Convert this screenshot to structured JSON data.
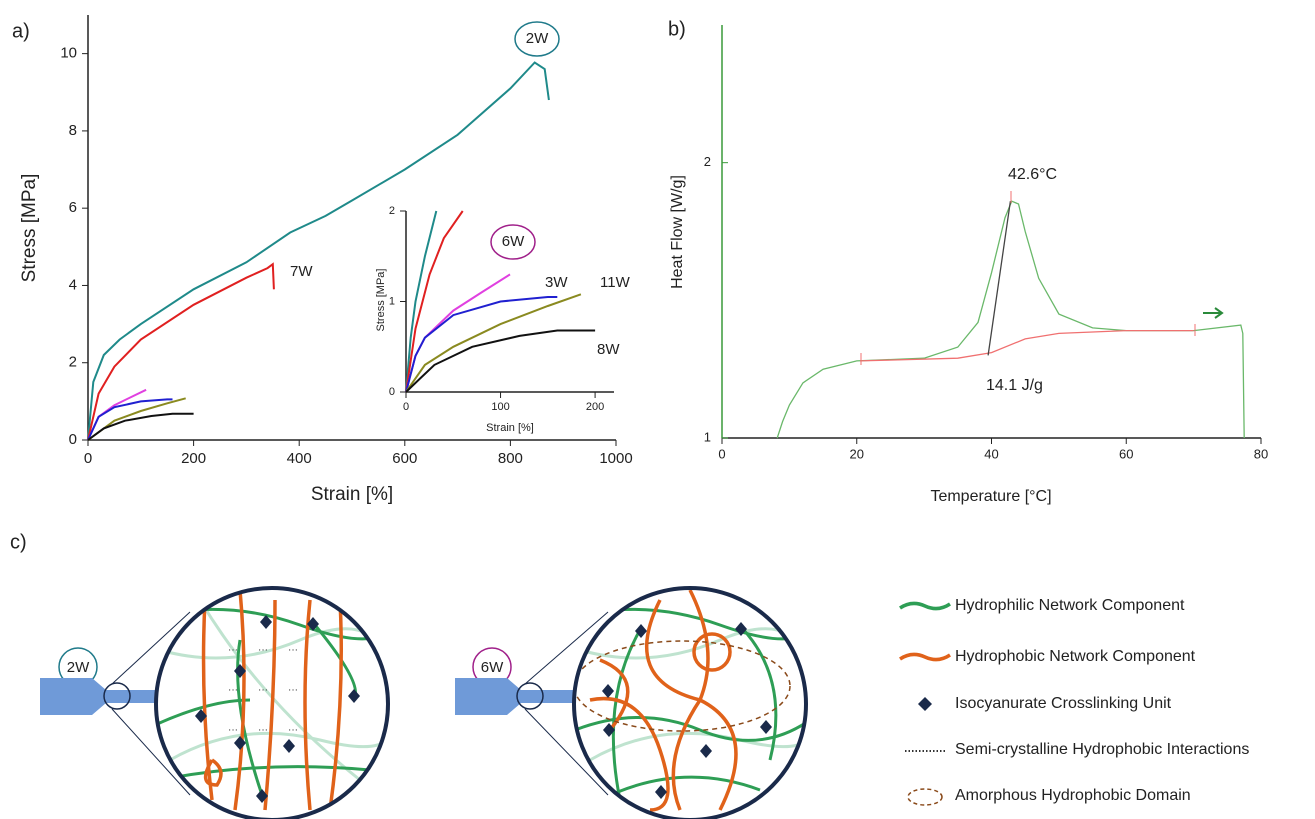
{
  "chart_data": [
    {
      "type": "line",
      "panel_label": "a)",
      "xlabel": "Strain [%]",
      "ylabel": "Stress [MPa]",
      "xlim": [
        0,
        1000
      ],
      "ylim": [
        0,
        11
      ],
      "xticks": [
        0,
        200,
        400,
        600,
        800,
        1000
      ],
      "yticks": [
        0,
        2,
        4,
        6,
        8,
        10
      ],
      "annotations": [
        "2W",
        "7W"
      ],
      "series": [
        {
          "name": "2W",
          "color": "#1f8a8a",
          "x": [
            0,
            10,
            30,
            60,
            100,
            200,
            300,
            383,
            450,
            500,
            600,
            700,
            800,
            846,
            865,
            873
          ],
          "values": [
            0,
            1.5,
            2.2,
            2.6,
            3.0,
            3.9,
            4.6,
            5.37,
            5.8,
            6.2,
            7.0,
            7.9,
            9.1,
            9.77,
            9.6,
            8.8
          ]
        },
        {
          "name": "7W",
          "color": "#e02020",
          "x": [
            0,
            20,
            50,
            100,
            200,
            300,
            340,
            350,
            352
          ],
          "values": [
            0,
            1.2,
            1.9,
            2.6,
            3.5,
            4.2,
            4.45,
            4.55,
            3.9
          ]
        },
        {
          "color": "#e040e0",
          "x": [
            0,
            20,
            50,
            80,
            110
          ],
          "values": [
            0,
            0.6,
            0.9,
            1.1,
            1.3
          ]
        },
        {
          "color": "#2020d0",
          "x": [
            0,
            20,
            50,
            100,
            150,
            160
          ],
          "values": [
            0,
            0.6,
            0.85,
            1.0,
            1.05,
            1.05
          ]
        },
        {
          "color": "#8a8a20",
          "x": [
            0,
            50,
            100,
            150,
            185
          ],
          "values": [
            0,
            0.5,
            0.75,
            0.95,
            1.08
          ]
        },
        {
          "color": "#111111",
          "x": [
            0,
            30,
            70,
            120,
            160,
            200
          ],
          "values": [
            0,
            0.3,
            0.5,
            0.62,
            0.68,
            0.68
          ]
        }
      ]
    },
    {
      "type": "line",
      "xlabel": "Strain [%]",
      "ylabel": "Stress [MPa]",
      "xlim": [
        0,
        220
      ],
      "ylim": [
        0,
        2
      ],
      "xticks": [
        0,
        100,
        200
      ],
      "yticks": [
        0,
        1,
        2
      ],
      "annotations": [
        "6W",
        "3W",
        "11W",
        "8W"
      ],
      "series": [
        {
          "color": "#1f8a8a",
          "x": [
            0,
            5,
            10,
            20,
            32
          ],
          "values": [
            0,
            0.6,
            1.0,
            1.5,
            2.0
          ]
        },
        {
          "color": "#e02020",
          "x": [
            0,
            10,
            25,
            40,
            60
          ],
          "values": [
            0,
            0.7,
            1.3,
            1.7,
            2.0
          ]
        },
        {
          "name": "6W",
          "color": "#e040e0",
          "x": [
            0,
            10,
            20,
            50,
            80,
            110
          ],
          "values": [
            0,
            0.4,
            0.6,
            0.9,
            1.1,
            1.3
          ]
        },
        {
          "name": "3W",
          "color": "#2020d0",
          "x": [
            0,
            10,
            20,
            50,
            100,
            150,
            160
          ],
          "values": [
            0,
            0.4,
            0.6,
            0.85,
            1.0,
            1.05,
            1.05
          ]
        },
        {
          "name": "11W",
          "color": "#8a8a20",
          "x": [
            0,
            20,
            50,
            100,
            150,
            185
          ],
          "values": [
            0,
            0.3,
            0.5,
            0.75,
            0.95,
            1.08
          ]
        },
        {
          "name": "8W",
          "color": "#111111",
          "x": [
            0,
            15,
            30,
            70,
            120,
            160,
            200
          ],
          "values": [
            0,
            0.15,
            0.3,
            0.5,
            0.62,
            0.68,
            0.68
          ]
        }
      ]
    },
    {
      "type": "line",
      "panel_label": "b)",
      "xlabel": "Temperature [°C]",
      "ylabel": "Heat Flow [W/g]",
      "xlim": [
        0,
        80
      ],
      "ylim": [
        1,
        2.5
      ],
      "xticks": [
        0,
        20,
        40,
        60,
        80
      ],
      "yticks": [
        1,
        2
      ],
      "y_axis_color": "#3a9a3a",
      "annotations": [
        "42.6°C",
        "14.1 J/g"
      ],
      "series": [
        {
          "color": "#6ab86a",
          "x": [
            8.2,
            9,
            10,
            12,
            15,
            20,
            30,
            35,
            38,
            40,
            42,
            43,
            44,
            45,
            47,
            50,
            55,
            60,
            70,
            77,
            77.3,
            77.5
          ],
          "values": [
            1.0,
            1.06,
            1.12,
            1.2,
            1.25,
            1.28,
            1.29,
            1.33,
            1.42,
            1.6,
            1.8,
            1.86,
            1.85,
            1.75,
            1.58,
            1.45,
            1.4,
            1.39,
            1.39,
            1.41,
            1.38,
            1.0
          ]
        },
        {
          "color": "#f07070",
          "x": [
            20.5,
            35,
            40,
            45,
            50,
            60,
            70
          ],
          "values": [
            1.28,
            1.29,
            1.31,
            1.36,
            1.38,
            1.39,
            1.39
          ]
        },
        {
          "color": "#444444",
          "x": [
            39.5,
            42.8
          ],
          "values": [
            1.3,
            1.86
          ]
        }
      ]
    }
  ],
  "diagram": {
    "panel_label": "c)",
    "samples": [
      "2W",
      "6W"
    ],
    "legend": [
      "Hydrophilic Network Component",
      "Hydrophobic Network Component",
      "Isocyanurate Crosslinking Unit",
      "Semi-crystalline Hydrophobic Interactions",
      "Amorphous Hydrophobic Domain"
    ]
  }
}
